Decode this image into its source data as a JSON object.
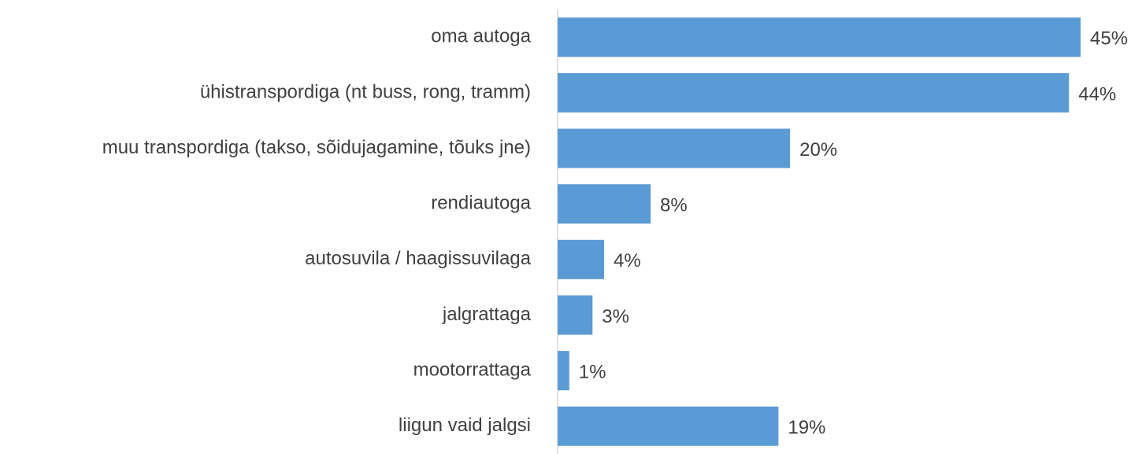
{
  "chart_data": {
    "type": "bar",
    "orientation": "horizontal",
    "categories": [
      "oma autoga",
      "ühistranspordiga (nt  buss, rong, tramm)",
      "muu transpordiga (takso, sõidujagamine, tõuks jne)",
      "rendiautoga",
      "autosuvila / haagissuvilaga",
      "jalgrattaga",
      "mootorrattaga",
      "liigun vaid jalgsi"
    ],
    "values": [
      45,
      44,
      20,
      8,
      4,
      3,
      1,
      19
    ],
    "value_labels": [
      "45%",
      "44%",
      "20%",
      "8%",
      "4%",
      "3%",
      "1%",
      "19%"
    ],
    "color": "#5b9bd5"
  }
}
